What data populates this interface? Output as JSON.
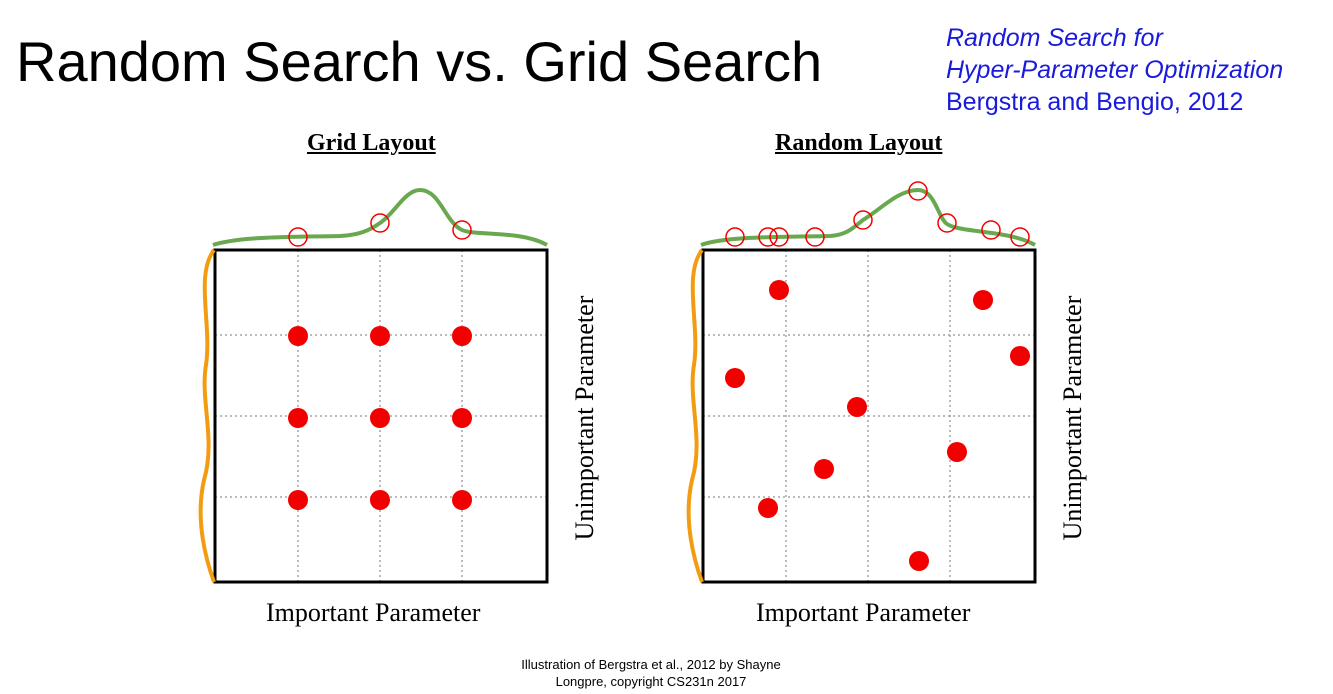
{
  "title": "Random Search vs. Grid Search",
  "reference": {
    "line1": "Random Search for",
    "line2": "Hyper-Parameter Optimization",
    "line3": "Bergstra and Bengio, 2012"
  },
  "panels": [
    {
      "title": "Grid Layout",
      "xlabel": "Important Parameter",
      "ylabel": "Unimportant Parameter"
    },
    {
      "title": "Random Layout",
      "xlabel": "Important Parameter",
      "ylabel": "Unimportant Parameter"
    }
  ],
  "credit": {
    "line1": "Illustration of Bergstra et al., 2012 by Shayne",
    "line2": "Longpre, copyright CS231n 2017"
  },
  "colors": {
    "point": "#f20000",
    "importance_curve": "#6aa84f",
    "unimportance_curve": "#f39c12",
    "reference_text": "#1a1adc"
  }
}
